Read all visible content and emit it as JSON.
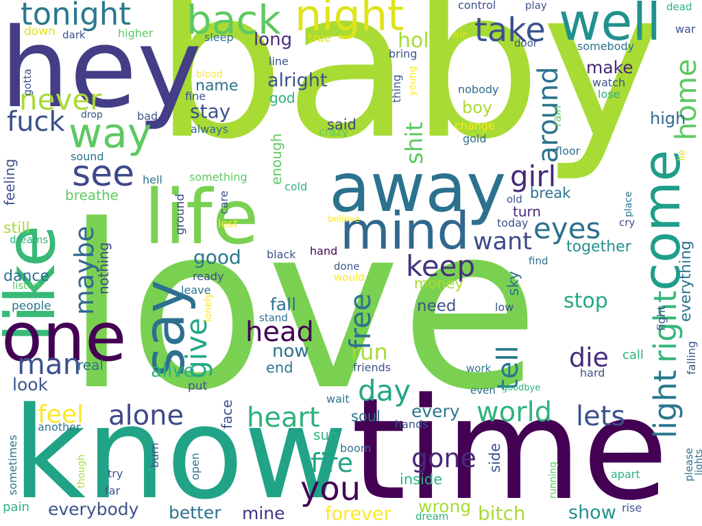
{
  "palette": {
    "deep_purple": "#440154",
    "indigo": "#472d7b",
    "blue": "#3b528b",
    "steel": "#2c728e",
    "teal": "#21918c",
    "green": "#28ae80",
    "light_green": "#5ec962",
    "lime": "#addc30",
    "yellow": "#fde725"
  },
  "words": [
    {
      "t": "baby",
      "c": "#a8db34"
    },
    {
      "t": "love",
      "c": "#7ad151"
    },
    {
      "t": "time",
      "c": "#440154"
    },
    {
      "t": "know",
      "c": "#20a386"
    },
    {
      "t": "hey",
      "c": "#433e85"
    },
    {
      "t": "like",
      "c": "#38b977"
    },
    {
      "t": "life",
      "c": "#7ad151"
    },
    {
      "t": "away",
      "c": "#2c728e"
    },
    {
      "t": "come",
      "c": "#1f9e89"
    },
    {
      "t": "one",
      "c": "#440154"
    },
    {
      "t": "say",
      "c": "#2d708e"
    },
    {
      "t": "mind",
      "c": "#31688e"
    },
    {
      "t": "well",
      "c": "#21918c"
    },
    {
      "t": "night",
      "c": "#dfe318"
    },
    {
      "t": "back",
      "c": "#5ec962"
    },
    {
      "t": "tonight",
      "c": "#2a788e"
    },
    {
      "t": "way",
      "c": "#5ec962"
    },
    {
      "t": "take",
      "c": "#3b528b"
    },
    {
      "t": "never",
      "c": "#a8db34"
    },
    {
      "t": "see",
      "c": "#3e4989"
    },
    {
      "t": "fuck",
      "c": "#3b528b"
    },
    {
      "t": "light",
      "c": "#2a788e"
    },
    {
      "t": "right",
      "c": "#35b779"
    },
    {
      "t": "home",
      "c": "#5ec962"
    },
    {
      "t": "around",
      "c": "#2c728e"
    },
    {
      "t": "eyes",
      "c": "#2c728e"
    },
    {
      "t": "girl",
      "c": "#482878"
    },
    {
      "t": "keep",
      "c": "#46337e"
    },
    {
      "t": "tell",
      "c": "#2a788e"
    },
    {
      "t": "head",
      "c": "#440154"
    },
    {
      "t": "man",
      "c": "#3b528b"
    },
    {
      "t": "maybe",
      "c": "#31688e"
    },
    {
      "t": "give",
      "c": "#22a884"
    },
    {
      "t": "free",
      "c": "#2c728e"
    },
    {
      "t": "want",
      "c": "#3e4989"
    },
    {
      "t": "die",
      "c": "#472d7b"
    },
    {
      "t": "world",
      "c": "#2fb47c"
    },
    {
      "t": "alone",
      "c": "#3e4989"
    },
    {
      "t": "day",
      "c": "#22a884"
    },
    {
      "t": "heart",
      "c": "#2db27d"
    },
    {
      "t": "lets",
      "c": "#3b528b"
    },
    {
      "t": "feel",
      "c": "#fde725"
    },
    {
      "t": "gone",
      "c": "#482878"
    },
    {
      "t": "fire",
      "c": "#20a386"
    },
    {
      "t": "you",
      "c": "#440154"
    },
    {
      "t": "stop",
      "c": "#22a884"
    },
    {
      "t": "run",
      "c": "#a8db34"
    },
    {
      "t": "everything",
      "c": "#2c728e"
    },
    {
      "t": "shit",
      "c": "#5ec962"
    },
    {
      "t": "alright",
      "c": "#3b528b"
    },
    {
      "t": "hold",
      "c": "#a8db34"
    },
    {
      "t": "long",
      "c": "#472d7b"
    },
    {
      "t": "make",
      "c": "#482878"
    },
    {
      "t": "stay",
      "c": "#3b528b"
    },
    {
      "t": "good",
      "c": "#2a788e"
    },
    {
      "t": "alive",
      "c": "#2db27d"
    },
    {
      "t": "now",
      "c": "#2c728e"
    },
    {
      "t": "fall",
      "c": "#2c728e"
    },
    {
      "t": "every",
      "c": "#2a788e"
    },
    {
      "t": "everybody",
      "c": "#3b528b"
    },
    {
      "t": "better",
      "c": "#2c728e"
    },
    {
      "t": "mine",
      "c": "#46337e"
    },
    {
      "t": "forever",
      "c": "#fde725"
    },
    {
      "t": "bitch",
      "c": "#a8db34"
    },
    {
      "t": "wrong",
      "c": "#a8db34"
    },
    {
      "t": "show",
      "c": "#21918c"
    },
    {
      "t": "high",
      "c": "#31688e"
    },
    {
      "t": "boy",
      "c": "#a8db34"
    },
    {
      "t": "said",
      "c": "#3e4989"
    },
    {
      "t": "name",
      "c": "#2c728e"
    },
    {
      "t": "together",
      "c": "#21918c"
    },
    {
      "t": "break",
      "c": "#2c728e"
    },
    {
      "t": "turn",
      "c": "#482878"
    },
    {
      "t": "need",
      "c": "#3b528b"
    },
    {
      "t": "money",
      "c": "#a8db34"
    },
    {
      "t": "sky",
      "c": "#2c728e"
    },
    {
      "t": "look",
      "c": "#3b528b"
    },
    {
      "t": "nothing",
      "c": "#3e4989"
    },
    {
      "t": "breathe",
      "c": "#5ec962"
    },
    {
      "t": "dance",
      "c": "#2c728e"
    },
    {
      "t": "still",
      "c": "#a8db34"
    },
    {
      "t": "feeling",
      "c": "#3b528b"
    },
    {
      "t": "people",
      "c": "#2c728e"
    },
    {
      "t": "real",
      "c": "#2c728e"
    },
    {
      "t": "end",
      "c": "#2c728e"
    },
    {
      "t": "soul",
      "c": "#2c728e"
    },
    {
      "t": "side",
      "c": "#3b528b"
    },
    {
      "t": "sun",
      "c": "#2db27d"
    },
    {
      "t": "inside",
      "c": "#2db27d"
    },
    {
      "t": "face",
      "c": "#3b528b"
    },
    {
      "t": "ground",
      "c": "#3e4989"
    },
    {
      "t": "hands",
      "c": "#3b528b"
    },
    {
      "t": "enough",
      "c": "#5ec962"
    },
    {
      "t": "god",
      "c": "#2db27d"
    },
    {
      "t": "down",
      "c": "#dfe318"
    },
    {
      "t": "sound",
      "c": "#2c728e"
    },
    {
      "t": "always",
      "c": "#31688e"
    },
    {
      "t": "fine",
      "c": "#3b528b"
    },
    {
      "t": "crazy",
      "c": "#5ec962"
    },
    {
      "t": "gold",
      "c": "#2c728e"
    },
    {
      "t": "change",
      "c": "#fde725"
    },
    {
      "t": "nobody",
      "c": "#31688e"
    },
    {
      "t": "watch",
      "c": "#3b528b"
    },
    {
      "t": "lose",
      "c": "#2db27d"
    },
    {
      "t": "rain",
      "c": "#5ec962"
    },
    {
      "t": "floor",
      "c": "#2c728e"
    },
    {
      "t": "lie",
      "c": "#dfe318"
    },
    {
      "t": "somebody",
      "c": "#2c728e"
    },
    {
      "t": "dark",
      "c": "#3b528b"
    },
    {
      "t": "higher",
      "c": "#5ec962"
    },
    {
      "t": "sleep",
      "c": "#2c728e"
    },
    {
      "t": "true",
      "c": "#dfe318"
    },
    {
      "t": "air",
      "c": "#dfe318"
    },
    {
      "t": "door",
      "c": "#3b528b"
    },
    {
      "t": "control",
      "c": "#3b528b"
    },
    {
      "t": "play",
      "c": "#3b528b"
    },
    {
      "t": "dead",
      "c": "#2db27d"
    },
    {
      "t": "war",
      "c": "#3b528b"
    },
    {
      "t": "bring",
      "c": "#3b528b"
    },
    {
      "t": "line",
      "c": "#3b528b"
    },
    {
      "t": "blood",
      "c": "#fde725"
    },
    {
      "t": "gotta",
      "c": "#3b528b"
    },
    {
      "t": "drop",
      "c": "#3b528b"
    },
    {
      "t": "bad",
      "c": "#3b528b"
    },
    {
      "t": "thing",
      "c": "#3b528b"
    },
    {
      "t": "young",
      "c": "#fde725"
    },
    {
      "t": "hell",
      "c": "#2c728e"
    },
    {
      "t": "something",
      "c": "#5ec962"
    },
    {
      "t": "cold",
      "c": "#2db27d"
    },
    {
      "t": "care",
      "c": "#3b528b"
    },
    {
      "t": "lost",
      "c": "#fde725"
    },
    {
      "t": "believe",
      "c": "#fde725"
    },
    {
      "t": "old",
      "c": "#3b528b"
    },
    {
      "t": "today",
      "c": "#3b528b"
    },
    {
      "t": "place",
      "c": "#2c728e"
    },
    {
      "t": "cry",
      "c": "#3b528b"
    },
    {
      "t": "dreams",
      "c": "#2db27d"
    },
    {
      "t": "black",
      "c": "#3b528b"
    },
    {
      "t": "hand",
      "c": "#440154"
    },
    {
      "t": "done",
      "c": "#3b528b"
    },
    {
      "t": "would",
      "c": "#fde725"
    },
    {
      "t": "find",
      "c": "#2c728e"
    },
    {
      "t": "listen",
      "c": "#5ec962"
    },
    {
      "t": "ready",
      "c": "#3b528b"
    },
    {
      "t": "leave",
      "c": "#2c728e"
    },
    {
      "t": "lonely",
      "c": "#fde725"
    },
    {
      "t": "stand",
      "c": "#2c728e"
    },
    {
      "t": "low",
      "c": "#3b528b"
    },
    {
      "t": "fight",
      "c": "#3b528b"
    },
    {
      "t": "falling",
      "c": "#3b528b"
    },
    {
      "t": "call",
      "c": "#2db27d"
    },
    {
      "t": "hard",
      "c": "#3b528b"
    },
    {
      "t": "friends",
      "c": "#3b528b"
    },
    {
      "t": "work",
      "c": "#2c728e"
    },
    {
      "t": "even",
      "c": "#2c728e"
    },
    {
      "t": "goodbye",
      "c": "#2db27d"
    },
    {
      "t": "put",
      "c": "#3b528b"
    },
    {
      "t": "wait",
      "c": "#2c728e"
    },
    {
      "t": "another",
      "c": "#2c728e"
    },
    {
      "t": "sometimes",
      "c": "#2c728e"
    },
    {
      "t": "boom",
      "c": "#2c728e"
    },
    {
      "t": "though",
      "c": "#a8db34"
    },
    {
      "t": "try",
      "c": "#3b528b"
    },
    {
      "t": "far",
      "c": "#3b528b"
    },
    {
      "t": "burn",
      "c": "#3b528b"
    },
    {
      "t": "open",
      "c": "#2c728e"
    },
    {
      "t": "running",
      "c": "#5ec962"
    },
    {
      "t": "apart",
      "c": "#2db27d"
    },
    {
      "t": "please",
      "c": "#2c728e"
    },
    {
      "t": "lights",
      "c": "#2c728e"
    },
    {
      "t": "rise",
      "c": "#3b528b"
    },
    {
      "t": "dream",
      "c": "#2db27d"
    },
    {
      "t": "pain",
      "c": "#2db27d"
    }
  ]
}
